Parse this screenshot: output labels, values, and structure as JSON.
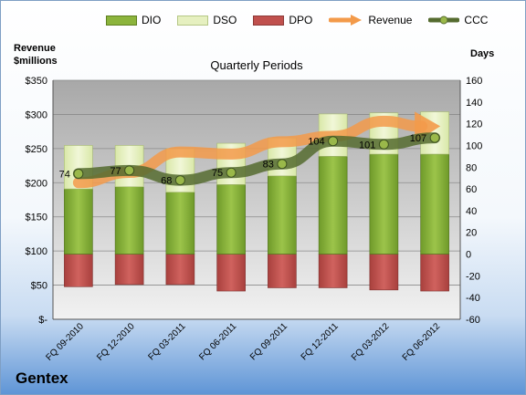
{
  "company": "Gentex",
  "colors": {
    "dio": "#8cb43c",
    "dso": "#e6f0c0",
    "dpo": "#c0504d",
    "revenue": "#f39a4a",
    "ccc": "#556b2f"
  },
  "chart_data": {
    "type": "bar",
    "title": "Quarterly Periods",
    "ylabel_left": "Revenue\n$millions",
    "ylabel_right": "Days",
    "categories": [
      "FQ 09-2010",
      "FQ 12-2010",
      "FQ 03-2011",
      "FQ 06-2011",
      "FQ 09-2011",
      "FQ 12-2011",
      "FQ 03-2012",
      "FQ 06-2012"
    ],
    "left_axis": {
      "min": 0,
      "max": 350,
      "step": 50,
      "tick_labels": [
        "$-",
        "$50",
        "$100",
        "$150",
        "$200",
        "$250",
        "$300",
        "$350"
      ]
    },
    "right_axis": {
      "min": -60,
      "max": 160,
      "step": 20,
      "tick_labels": [
        "-60",
        "-40",
        "-20",
        "0",
        "20",
        "40",
        "60",
        "80",
        "100",
        "120",
        "140",
        "160"
      ]
    },
    "legend_position": "top",
    "grid": true,
    "series": [
      {
        "name": "DIO",
        "axis": "right",
        "kind": "stacked-bar",
        "values": [
          60,
          62,
          57,
          64,
          72,
          90,
          92,
          92
        ]
      },
      {
        "name": "DSO",
        "axis": "right",
        "kind": "stacked-bar",
        "values": [
          40,
          38,
          40,
          38,
          35,
          39,
          38,
          39
        ]
      },
      {
        "name": "DPO",
        "axis": "right",
        "kind": "negative-bar",
        "values": [
          -30,
          -28,
          -28,
          -34,
          -31,
          -31,
          -33,
          -34
        ]
      },
      {
        "name": "Revenue",
        "axis": "left",
        "kind": "line",
        "values": [
          200,
          215,
          245,
          242,
          260,
          268,
          290,
          280
        ]
      },
      {
        "name": "CCC",
        "axis": "right",
        "kind": "line",
        "values": [
          74,
          77,
          68,
          75,
          83,
          104,
          101,
          107
        ],
        "labels": [
          "74",
          "77",
          "68",
          "75",
          "83",
          "104",
          "101",
          "107"
        ]
      }
    ]
  }
}
